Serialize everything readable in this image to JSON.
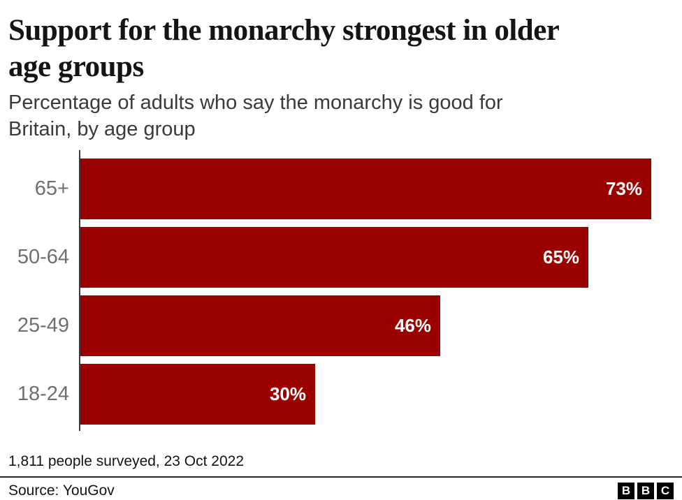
{
  "header": {
    "title": "Support for the monarchy strongest in older\nage groups",
    "subtitle": "Percentage of adults who say the monarchy is good for\nBritain, by age group"
  },
  "chart_data": {
    "type": "bar",
    "orientation": "horizontal",
    "title": "Support for the monarchy strongest in older age groups",
    "subtitle": "Percentage of adults who say the monarchy is good for Britain, by age group",
    "categories": [
      "65+",
      "50-64",
      "25-49",
      "18-24"
    ],
    "values": [
      73,
      65,
      46,
      30
    ],
    "value_labels": [
      "73%",
      "65%",
      "46%",
      "30%"
    ],
    "xlim": [
      0,
      73
    ],
    "grid": false,
    "axis_line_color": "#3a3a3a",
    "bar_color": "#9a0000",
    "category_label_color": "#6f6f73",
    "value_label_color": "#ffffff"
  },
  "footer": {
    "footnote": "1,811 people surveyed, 23 Oct 2022",
    "source": "Source: YouGov",
    "logo_letters": [
      "B",
      "B",
      "C"
    ]
  }
}
